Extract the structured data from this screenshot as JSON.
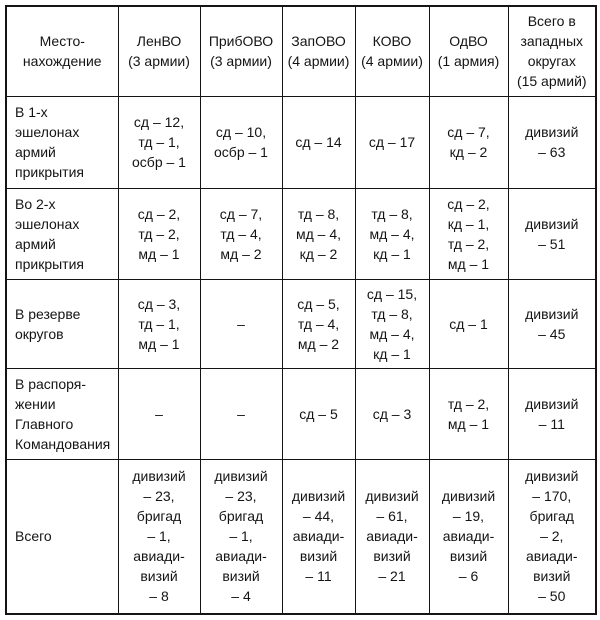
{
  "page": {
    "background_color": "#ffffff",
    "text_color": "#141414",
    "border_color": "#141414"
  },
  "table": {
    "header": [
      "Место-\nнахождение",
      "ЛенВО\n(3 армии)",
      "ПрибОВО\n(3 армии)",
      "ЗапОВО\n(4 армии)",
      "КОВО\n(4 армии)",
      "ОдВО\n(1 армия)",
      "Всего в\nзападных\nокругах\n(15 армий)"
    ],
    "rows": [
      {
        "cells": [
          "В 1-х\nэшелонах\nармий\nприкрытия",
          "сд – 12,\nтд – 1,\nосбр – 1",
          "сд – 10,\nосбр – 1",
          "сд – 14",
          "сд – 17",
          "сд – 7,\nкд – 2",
          "дивизий\n– 63"
        ]
      },
      {
        "cells": [
          "Во 2-х\nэшелонах\nармий\nприкрытия",
          "сд – 2,\nтд – 2,\nмд – 1",
          "сд – 7,\nтд – 4,\nмд – 2",
          "тд – 8,\nмд – 4,\nкд – 2",
          "тд – 8,\nмд – 4,\nкд – 1",
          "сд – 2,\nкд – 1,\nтд – 2,\nмд – 1",
          "дивизий\n– 51"
        ]
      },
      {
        "cells": [
          "В резерве\nокругов",
          "сд – 3,\nтд – 1,\nмд – 1",
          "–",
          "сд – 5,\nтд – 4,\nмд – 2",
          "сд – 15,\nтд – 8,\nмд – 4,\nкд – 1",
          "сд – 1",
          "дивизий\n– 45"
        ]
      },
      {
        "cells": [
          "В распоря-\nжении\nГлавного\nКомандования",
          "–",
          "–",
          "сд – 5",
          "сд – 3",
          "тд – 2,\nмд – 1",
          "дивизий\n– 11"
        ]
      },
      {
        "cells": [
          "Всего",
          "дивизий\n– 23,\nбригад\n– 1,\nавиади-\nвизий\n– 8",
          "дивизий\n– 23,\nбригад\n– 1,\nавиади-\nвизий\n– 4",
          "дивизий\n– 44,\nавиади-\nвизий\n– 11",
          "дивизий\n– 61,\nавиади-\nвизий\n– 21",
          "дивизий\n– 19,\nавиади-\nвизий\n– 6",
          "дивизий\n– 170,\nбригад\n– 2,\nавиади-\nвизий\n– 50"
        ]
      }
    ]
  }
}
